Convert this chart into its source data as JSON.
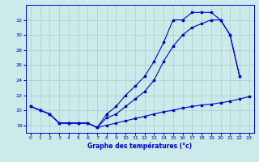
{
  "xlabel": "Graphe des températures (°c)",
  "background_color": "#cceaea",
  "grid_color": "#aacccc",
  "line_color": "#0000cc",
  "xlim": [
    -0.5,
    23.5
  ],
  "ylim": [
    17.0,
    34.0
  ],
  "yticks": [
    18,
    20,
    22,
    24,
    26,
    28,
    30,
    32
  ],
  "xticks": [
    0,
    1,
    2,
    3,
    4,
    5,
    6,
    7,
    8,
    9,
    10,
    11,
    12,
    13,
    14,
    15,
    16,
    17,
    18,
    19,
    20,
    21,
    22,
    23
  ],
  "line_top_x": [
    0,
    1,
    2,
    3,
    4,
    5,
    6,
    7,
    8,
    9,
    10,
    11,
    12,
    13,
    14,
    15,
    16,
    17,
    18,
    19,
    20,
    21,
    22
  ],
  "line_top_y": [
    20.5,
    20.0,
    19.5,
    18.3,
    18.3,
    18.3,
    18.3,
    17.7,
    19.5,
    20.5,
    22.0,
    23.2,
    24.5,
    26.5,
    29.0,
    32.0,
    32.0,
    33.0,
    33.0,
    33.0,
    32.0,
    30.0,
    24.5
  ],
  "line_mid_x": [
    0,
    1,
    2,
    3,
    4,
    5,
    6,
    7,
    8,
    9,
    10,
    11,
    12,
    13,
    14,
    15,
    16,
    17,
    18,
    19,
    20,
    21,
    22
  ],
  "line_mid_y": [
    20.5,
    20.0,
    19.5,
    18.3,
    18.3,
    18.3,
    18.3,
    17.7,
    19.0,
    19.5,
    20.5,
    21.5,
    22.5,
    24.0,
    26.5,
    28.5,
    30.0,
    31.0,
    31.5,
    32.0,
    32.0,
    30.0,
    24.5
  ],
  "line_bot_x": [
    0,
    1,
    2,
    3,
    4,
    5,
    6,
    7,
    8,
    9,
    10,
    11,
    12,
    13,
    14,
    15,
    16,
    17,
    18,
    19,
    20,
    21,
    22,
    23
  ],
  "line_bot_y": [
    20.5,
    20.0,
    19.5,
    18.3,
    18.3,
    18.3,
    18.3,
    17.7,
    18.0,
    18.3,
    18.6,
    18.9,
    19.2,
    19.5,
    19.8,
    20.0,
    20.3,
    20.5,
    20.7,
    20.8,
    21.0,
    21.2,
    21.5,
    21.8
  ]
}
